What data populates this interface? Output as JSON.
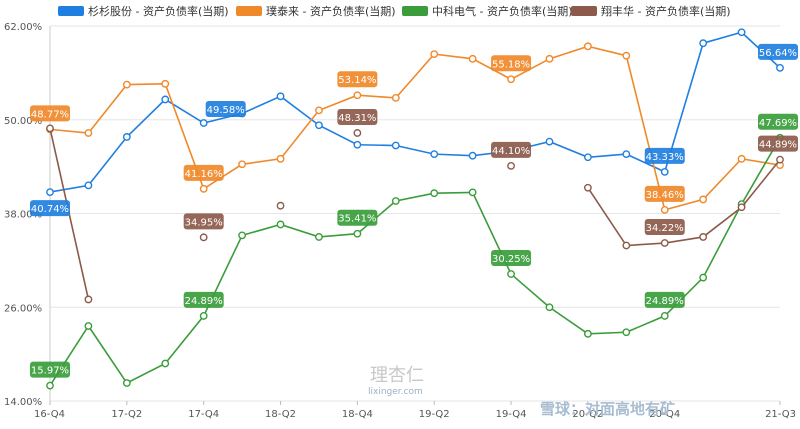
{
  "chart_data": {
    "type": "line",
    "title": "",
    "xlabel": "",
    "ylabel": "",
    "ylim": [
      14,
      62
    ],
    "y_ticks": [
      "62.00%",
      "50.00%",
      "38.00%",
      "26.00%",
      "14.00%"
    ],
    "y_tick_values": [
      62,
      50,
      38,
      26,
      14
    ],
    "x_tick_labels": [
      "16-Q4",
      "17-Q2",
      "17-Q4",
      "18-Q2",
      "18-Q4",
      "19-Q2",
      "19-Q4",
      "20-Q2",
      "20-Q4",
      "21-Q3"
    ],
    "x_tick_indices": [
      0,
      2,
      4,
      6,
      8,
      10,
      12,
      14,
      16,
      19
    ],
    "x_count": 20,
    "grid": "horizontal",
    "legend_position": "top",
    "series": [
      {
        "name": "杉杉股份 - 资产负债率(当期)",
        "color": "#1f7fe0",
        "values": [
          40.74,
          41.6,
          47.8,
          52.6,
          49.58,
          50.8,
          53.0,
          49.3,
          46.8,
          46.7,
          45.6,
          45.4,
          46.0,
          47.2,
          45.2,
          45.6,
          43.33,
          59.8,
          61.2,
          56.64
        ],
        "labels": [
          {
            "index": 0,
            "text": "40.74%",
            "pos": "below"
          },
          {
            "index": 4,
            "text": "49.58%",
            "pos": "right"
          },
          {
            "index": 16,
            "text": "43.33%",
            "pos": "above"
          },
          {
            "index": 19,
            "text": "56.64%",
            "pos": "above"
          }
        ]
      },
      {
        "name": "璞泰来 - 资产负债率(当期)",
        "color": "#f0892a",
        "values": [
          48.77,
          48.3,
          54.5,
          54.6,
          41.16,
          44.3,
          45.0,
          51.2,
          53.14,
          52.8,
          58.4,
          57.8,
          55.18,
          57.8,
          59.4,
          58.2,
          38.46,
          39.8,
          45.0,
          44.2
        ],
        "labels": [
          {
            "index": 0,
            "text": "48.77%",
            "pos": "above"
          },
          {
            "index": 4,
            "text": "41.16%",
            "pos": "above"
          },
          {
            "index": 8,
            "text": "53.14%",
            "pos": "above"
          },
          {
            "index": 12,
            "text": "55.18%",
            "pos": "above"
          },
          {
            "index": 16,
            "text": "38.46%",
            "pos": "above"
          }
        ]
      },
      {
        "name": "中科电气 - 资产负债率(当期)",
        "color": "#3a9d3a",
        "values": [
          15.97,
          23.6,
          16.3,
          18.8,
          24.89,
          35.2,
          36.6,
          35.0,
          35.41,
          39.6,
          40.6,
          40.7,
          30.25,
          26.0,
          22.6,
          22.8,
          24.89,
          29.8,
          39.2,
          47.69
        ],
        "labels": [
          {
            "index": 0,
            "text": "15.97%",
            "pos": "above"
          },
          {
            "index": 4,
            "text": "24.89%",
            "pos": "above"
          },
          {
            "index": 8,
            "text": "35.41%",
            "pos": "above"
          },
          {
            "index": 12,
            "text": "30.25%",
            "pos": "above"
          },
          {
            "index": 16,
            "text": "24.89%",
            "pos": "above"
          },
          {
            "index": 19,
            "text": "47.69%",
            "pos": "above"
          }
        ]
      },
      {
        "name": "翔丰华 - 资产负债率(当期)",
        "color": "#8c5a4a",
        "values": [
          48.9,
          27.0,
          null,
          null,
          34.95,
          null,
          39.0,
          null,
          48.31,
          null,
          null,
          null,
          44.1,
          null,
          41.3,
          33.9,
          34.22,
          35.0,
          38.8,
          44.89
        ],
        "labels": [
          {
            "index": 4,
            "text": "34.95%",
            "pos": "above"
          },
          {
            "index": 8,
            "text": "48.31%",
            "pos": "above"
          },
          {
            "index": 12,
            "text": "44.10%",
            "pos": "above"
          },
          {
            "index": 16,
            "text": "34.22%",
            "pos": "above"
          },
          {
            "index": 19,
            "text": "44.89%",
            "pos": "above"
          }
        ]
      }
    ]
  },
  "watermarks": {
    "lixinger_cn": "理杏仁",
    "lixinger_url": "lixinger.com",
    "xueqiu": "雪球：对面高地有矿"
  }
}
